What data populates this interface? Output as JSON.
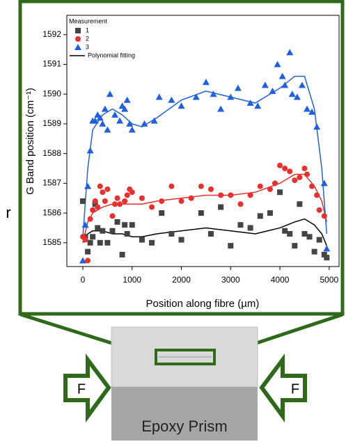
{
  "chart_data": {
    "type": "scatter",
    "x_label": "Position along fibre (µm)",
    "y_label": "G Band position (cm⁻¹)",
    "legend_title": "Measurement",
    "legend_position": "upper left",
    "xlim": [
      -325,
      5200
    ],
    "ylim": [
      1584.2,
      1592.65
    ],
    "xticks": [
      0,
      1000,
      2000,
      3000,
      4000,
      5000
    ],
    "yticks": [
      1585,
      1586,
      1587,
      1588,
      1589,
      1590,
      1591,
      1592
    ],
    "series": [
      {
        "name": "1",
        "color": "#444444",
        "marker": "square",
        "x": [
          0,
          50,
          100,
          150,
          200,
          250,
          300,
          350,
          400,
          500,
          600,
          700,
          800,
          850,
          900,
          1000,
          1200,
          1400,
          1600,
          1800,
          2000,
          2400,
          2600,
          2800,
          3000,
          3200,
          3400,
          3600,
          3800,
          4000,
          4100,
          4200,
          4300,
          4400,
          4500,
          4600,
          4700,
          4800,
          4900,
          4950
        ],
        "values": [
          1586.4,
          1585.2,
          1584.7,
          1585.0,
          1585.2,
          1586.3,
          1585.5,
          1585.0,
          1585.4,
          1585.0,
          1585.4,
          1585.7,
          1584.6,
          1585.6,
          1585.3,
          1585.6,
          1585.1,
          1585.0,
          1586.0,
          1585.3,
          1585.1,
          1586.0,
          1585.3,
          1586.2,
          1584.9,
          1585.6,
          1585.5,
          1585.9,
          1586.0,
          1586.7,
          1585.4,
          1585.3,
          1584.9,
          1586.3,
          1585.3,
          1585.2,
          1584.7,
          1585.1,
          1584.6,
          1584.5
        ]
      },
      {
        "name": "2",
        "color": "#e8302e",
        "marker": "circle",
        "x": [
          0,
          50,
          100,
          150,
          200,
          250,
          300,
          350,
          400,
          450,
          500,
          600,
          650,
          700,
          750,
          850,
          900,
          950,
          1000,
          1200,
          1400,
          1600,
          1800,
          2000,
          2200,
          2400,
          2600,
          2800,
          3000,
          3200,
          3400,
          3600,
          3800,
          3900,
          4000,
          4100,
          4200,
          4300,
          4400,
          4500,
          4550,
          4650,
          4750,
          4800,
          4900
        ],
        "values": [
          1585.2,
          1585.1,
          1584.4,
          1585.8,
          1586.1,
          1586.4,
          1586.2,
          1586.9,
          1586.7,
          1586.4,
          1586.8,
          1585.9,
          1586.3,
          1586.5,
          1586.3,
          1586.4,
          1586.6,
          1586.8,
          1586.7,
          1586.5,
          1586.2,
          1586.4,
          1586.9,
          1586.4,
          1586.5,
          1586.9,
          1586.8,
          1586.6,
          1586.6,
          1586.3,
          1586.6,
          1586.9,
          1586.8,
          1587.0,
          1587.6,
          1587.5,
          1587.4,
          1587.1,
          1587.2,
          1587.5,
          1587.3,
          1586.9,
          1586.6,
          1586.1,
          1585.9
        ]
      },
      {
        "name": "3",
        "color": "#1f5fe0",
        "marker": "triangle",
        "x": [
          0,
          50,
          100,
          150,
          200,
          250,
          300,
          350,
          400,
          450,
          500,
          550,
          650,
          750,
          800,
          850,
          900,
          950,
          1000,
          1250,
          1450,
          1550,
          1800,
          2000,
          2300,
          2500,
          2650,
          2800,
          3000,
          3150,
          3400,
          3550,
          3700,
          3850,
          3950,
          4050,
          4100,
          4200,
          4250,
          4350,
          4450,
          4550,
          4650,
          4750,
          4900,
          4950
        ],
        "values": [
          1584.4,
          1585.6,
          1586.9,
          1588.1,
          1589.1,
          1589.1,
          1589.3,
          1589.2,
          1589.0,
          1589.5,
          1588.8,
          1590.0,
          1589.3,
          1589.1,
          1589.6,
          1589.5,
          1589.8,
          1589.0,
          1588.8,
          1589.0,
          1589.1,
          1589.9,
          1589.8,
          1589.6,
          1589.9,
          1590.4,
          1590.0,
          1589.5,
          1589.9,
          1590.2,
          1589.7,
          1589.6,
          1590.3,
          1590.1,
          1591.0,
          1590.6,
          1590.3,
          1591.4,
          1590.0,
          1589.9,
          1590.3,
          1589.5,
          1589.4,
          1588.9,
          1587.0,
          1584.8
        ]
      }
    ],
    "fit_label": "Polynomial fitting",
    "fit_legend_color": "#000000",
    "fits": [
      {
        "color": "#000000",
        "x": [
          0,
          100,
          200,
          400,
          600,
          800,
          1000,
          1200,
          1500,
          2000,
          2500,
          3000,
          3500,
          4000,
          4300,
          4500,
          4700,
          4850,
          4950
        ],
        "values": [
          1585.0,
          1585.3,
          1585.4,
          1585.4,
          1585.3,
          1585.3,
          1585.2,
          1585.2,
          1585.3,
          1585.4,
          1585.5,
          1585.4,
          1585.3,
          1585.5,
          1585.7,
          1585.8,
          1585.6,
          1585.3,
          1584.9
        ]
      },
      {
        "color": "#e8302e",
        "x": [
          0,
          100,
          200,
          400,
          600,
          800,
          1000,
          1200,
          1500,
          2000,
          2500,
          3000,
          3500,
          4000,
          4300,
          4500,
          4700,
          4850,
          4950
        ],
        "values": [
          1585.0,
          1585.7,
          1586.0,
          1586.2,
          1586.3,
          1586.3,
          1586.3,
          1586.3,
          1586.4,
          1586.5,
          1586.6,
          1586.6,
          1586.7,
          1587.0,
          1587.3,
          1587.3,
          1586.9,
          1586.4,
          1585.7
        ]
      },
      {
        "color": "#1f5fe0",
        "x": [
          0,
          100,
          200,
          400,
          600,
          800,
          1000,
          1200,
          1500,
          2000,
          2500,
          3000,
          3500,
          4000,
          4300,
          4500,
          4700,
          4850,
          4950
        ],
        "values": [
          1585.2,
          1587.5,
          1588.8,
          1589.3,
          1589.5,
          1589.3,
          1589.0,
          1588.9,
          1589.2,
          1589.8,
          1590.1,
          1589.9,
          1589.7,
          1590.2,
          1590.6,
          1590.6,
          1589.5,
          1587.5,
          1585.3
        ]
      }
    ]
  },
  "diagram": {
    "side_text": "r",
    "sample_label": "Epoxy Prism",
    "force_left": "F",
    "force_right": "F"
  }
}
